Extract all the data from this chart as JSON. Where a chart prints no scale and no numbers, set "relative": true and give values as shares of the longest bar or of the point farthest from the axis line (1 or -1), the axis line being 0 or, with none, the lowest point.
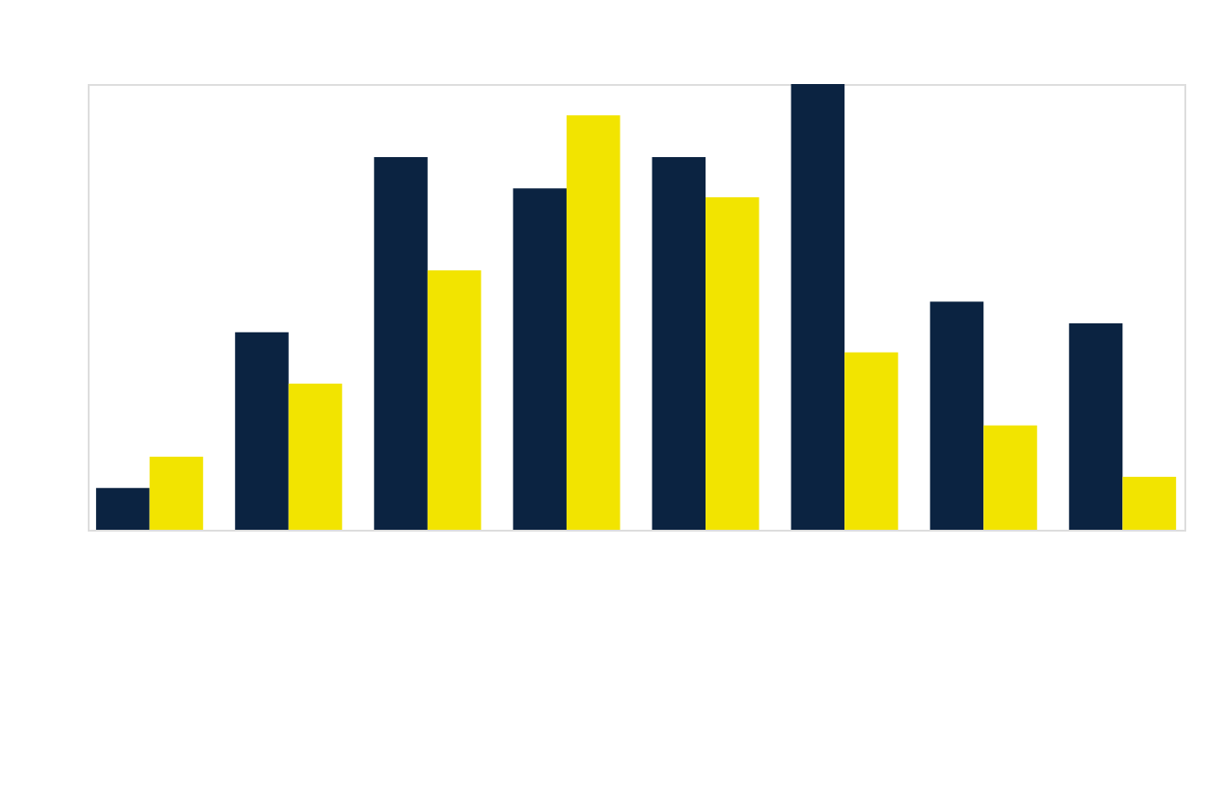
{
  "chart_data": {
    "type": "bar",
    "relative": true,
    "categories": [
      null,
      null,
      null,
      null,
      null,
      null,
      null,
      null
    ],
    "series": [
      {
        "color": "#0b2341",
        "values": [
          0.094,
          0.443,
          0.836,
          0.766,
          0.836,
          1,
          0.512,
          0.463
        ]
      },
      {
        "color": "#f2e400",
        "values": [
          0.164,
          0.328,
          0.582,
          0.93,
          0.746,
          0.398,
          0.234,
          0.119
        ]
      }
    ],
    "grid": false
  }
}
